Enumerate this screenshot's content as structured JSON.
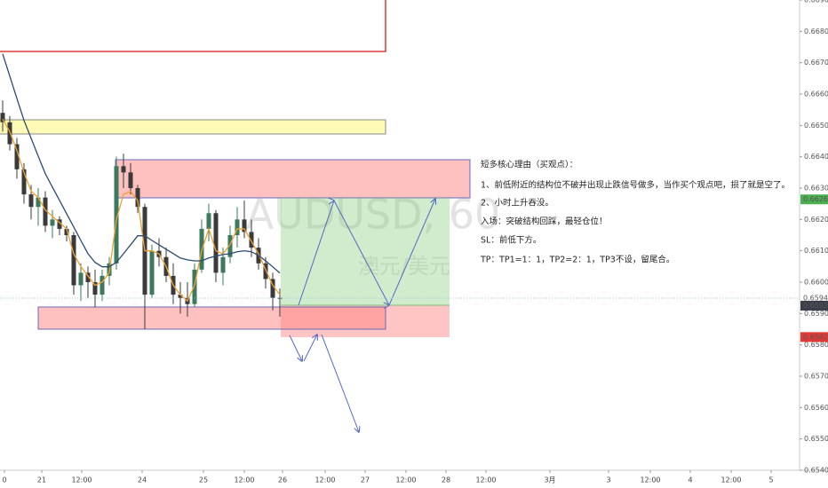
{
  "chart_data": {
    "type": "candlestick",
    "watermark": [
      "AUDUSD, 60",
      "澳元/美元"
    ],
    "annotations": [
      "短多核心理由（买观点）：",
      "1、前低附近的结构位不破并出现止跌信号做多，当作买个观点吧，损了就是空了。",
      "2、小时上升吞没。",
      "入场：突破结构回踩，最轻仓位！",
      "SL：前低下方。",
      "TP：TP1=1：1，TP2=2：1，TP3不设，留尾合。"
    ],
    "x": [
      0.75,
      2.75,
      4.75,
      6.75,
      8.75,
      10.75,
      12.75,
      14.75,
      16.75,
      18.75,
      20.75,
      22.75,
      24.75,
      26.75,
      28.75,
      30.75,
      32.75,
      34.75,
      36.75,
      38.75,
      40.75,
      42.75,
      44.75,
      46.75,
      48.75,
      50.75,
      52.75,
      54.75,
      56.75,
      58.75,
      60.75,
      62.75,
      64.75,
      66.75,
      68.75,
      70.75,
      72.75,
      74.75,
      76.75,
      78.75
    ],
    "open": [
      0.6654,
      0.6651,
      0.6644,
      0.6636,
      0.6628,
      0.6624,
      0.6627,
      0.6618,
      0.662,
      0.6617,
      0.6615,
      0.6599,
      0.6603,
      0.66,
      0.6596,
      0.6602,
      0.6606,
      0.6637,
      0.6635,
      0.663,
      0.6624,
      0.6596,
      0.661,
      0.6608,
      0.6602,
      0.6596,
      0.6595,
      0.6593,
      0.6604,
      0.6617,
      0.6622,
      0.6603,
      0.6608,
      0.6615,
      0.662,
      0.6616,
      0.6611,
      0.6606,
      0.6601,
      0.6595
    ],
    "high": [
      0.6658,
      0.6653,
      0.6646,
      0.6638,
      0.6631,
      0.663,
      0.6629,
      0.6623,
      0.6621,
      0.6618,
      0.6616,
      0.6606,
      0.6605,
      0.6604,
      0.6604,
      0.6608,
      0.664,
      0.6641,
      0.6638,
      0.6631,
      0.6625,
      0.6612,
      0.6614,
      0.6611,
      0.6606,
      0.66,
      0.66,
      0.6606,
      0.662,
      0.6625,
      0.6623,
      0.6611,
      0.6618,
      0.6624,
      0.6626,
      0.662,
      0.6614,
      0.6608,
      0.6603,
      0.6598
    ],
    "low": [
      0.6648,
      0.6642,
      0.6633,
      0.6625,
      0.662,
      0.6618,
      0.6616,
      0.6614,
      0.6615,
      0.6613,
      0.6596,
      0.6594,
      0.6595,
      0.6592,
      0.6594,
      0.6599,
      0.6604,
      0.663,
      0.6628,
      0.6622,
      0.6585,
      0.6595,
      0.6605,
      0.66,
      0.6593,
      0.659,
      0.6589,
      0.6592,
      0.6603,
      0.6613,
      0.66,
      0.6599,
      0.6606,
      0.6611,
      0.6614,
      0.6608,
      0.6604,
      0.6598,
      0.6591,
      0.6589
    ],
    "close": [
      0.6651,
      0.6644,
      0.6636,
      0.6628,
      0.6624,
      0.6627,
      0.6618,
      0.662,
      0.6617,
      0.6615,
      0.6599,
      0.6603,
      0.66,
      0.6596,
      0.6602,
      0.6606,
      0.6637,
      0.6635,
      0.663,
      0.6624,
      0.6596,
      0.661,
      0.6608,
      0.6602,
      0.6596,
      0.6595,
      0.6593,
      0.6604,
      0.6617,
      0.6622,
      0.6603,
      0.6608,
      0.6615,
      0.662,
      0.6616,
      0.6611,
      0.6606,
      0.6601,
      0.6595,
      0.65949
    ],
    "up_color": "#3b7a5c",
    "down_color": "#3a3a3a",
    "lines": [
      {
        "color": "#f0a030",
        "values": [
          0.6652,
          0.6648,
          0.6642,
          0.6635,
          0.6629,
          0.6627,
          0.6623,
          0.6621,
          0.6619,
          0.6617,
          0.6609,
          0.6605,
          0.6602,
          0.6599,
          0.66,
          0.6603,
          0.662,
          0.6628,
          0.6629,
          0.6626,
          0.661,
          0.661,
          0.6609,
          0.6605,
          0.6599,
          0.6596,
          0.6594,
          0.6599,
          0.661,
          0.6617,
          0.661,
          0.6609,
          0.6612,
          0.6617,
          0.6617,
          0.6613,
          0.6609,
          0.6604,
          0.6599,
          0.6596
        ]
      },
      {
        "color": "#2b4a73",
        "values": [
          0.66728,
          0.66657,
          0.66586,
          0.66516,
          0.66459,
          0.66402,
          0.66346,
          0.66303,
          0.66261,
          0.66218,
          0.66176,
          0.66133,
          0.66091,
          0.66063,
          0.66049,
          0.66049,
          0.66063,
          0.66091,
          0.66119,
          0.66148,
          0.66148,
          0.66133,
          0.66119,
          0.66105,
          0.66091,
          0.66077,
          0.66071,
          0.66068,
          0.66068,
          0.66077,
          0.66083,
          0.66088,
          0.66091,
          0.66097,
          0.661,
          0.66097,
          0.66085,
          0.66068,
          0.66049,
          0.66029
        ]
      }
    ],
    "xlim": [
      0,
      225
    ],
    "xticks": [
      {
        "value": 1.25,
        "label": "0"
      },
      {
        "value": 11.75,
        "label": "21"
      },
      {
        "value": 23,
        "label": "12:00"
      },
      {
        "value": 40,
        "label": "24"
      },
      {
        "value": 57.25,
        "label": "25"
      },
      {
        "value": 68.75,
        "label": "12:00"
      },
      {
        "value": 79.5,
        "label": "26"
      },
      {
        "value": 91.5,
        "label": "12:00"
      },
      {
        "value": 102.75,
        "label": "27"
      },
      {
        "value": 114.25,
        "label": "12:00"
      },
      {
        "value": 125.5,
        "label": "28"
      },
      {
        "value": 136.75,
        "label": "12:00"
      },
      {
        "value": 154.75,
        "label": "3月"
      },
      {
        "value": 171.25,
        "label": "3"
      },
      {
        "value": 183,
        "label": "12:00"
      },
      {
        "value": 194.25,
        "label": "4"
      },
      {
        "value": 205.75,
        "label": "12:00"
      },
      {
        "value": 217,
        "label": "5"
      }
    ],
    "ylim": [
      0.654,
      0.669
    ],
    "yticks": [
      {
        "value": 0.654,
        "label": "0.65400"
      },
      {
        "value": 0.655,
        "label": "0.65500"
      },
      {
        "value": 0.656,
        "label": "0.65600"
      },
      {
        "value": 0.657,
        "label": "0.65700"
      },
      {
        "value": 0.658,
        "label": "0.65800"
      },
      {
        "value": 0.659,
        "label": "0.65900"
      },
      {
        "value": 0.66,
        "label": "0.66000"
      },
      {
        "value": 0.661,
        "label": "0.66100"
      },
      {
        "value": 0.662,
        "label": "0.66200"
      },
      {
        "value": 0.663,
        "label": "0.66300"
      },
      {
        "value": 0.664,
        "label": "0.66400"
      },
      {
        "value": 0.665,
        "label": "0.66500"
      },
      {
        "value": 0.666,
        "label": "0.66600"
      },
      {
        "value": 0.667,
        "label": "0.66700"
      },
      {
        "value": 0.668,
        "label": "0.66800"
      },
      {
        "value": 0.669,
        "label": "0.66900"
      }
    ],
    "grid": false,
    "price_tags": [
      {
        "value": 0.66264,
        "color": "#4caf50"
      },
      {
        "value": 0.65949,
        "color": "#ffffff"
      },
      {
        "value": 0.65925,
        "color": "#3a3f4a"
      },
      {
        "value": 0.65825,
        "color": "#e53935"
      }
    ]
  }
}
